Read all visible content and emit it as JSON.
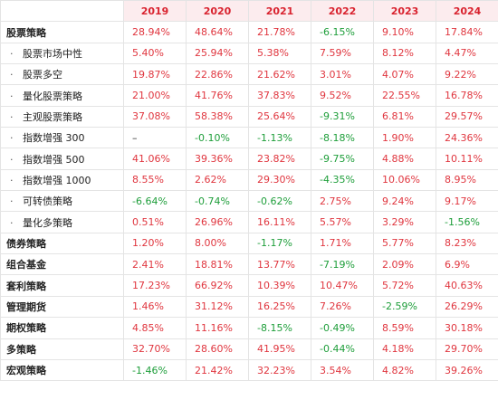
{
  "colors": {
    "positive": "#e0363f",
    "negative": "#1e9e3a",
    "header_text": "#d9232f",
    "header_bg": "#fcecee"
  },
  "bullet_glyph": "·",
  "years": [
    "2019",
    "2020",
    "2021",
    "2022",
    "2023",
    "2024"
  ],
  "rows": [
    {
      "label": "股票策略",
      "type": "main",
      "values": [
        "28.94%",
        "48.64%",
        "21.78%",
        "-6.15%",
        "9.10%",
        "17.84%"
      ]
    },
    {
      "label": "股票市场中性",
      "type": "sub",
      "values": [
        "5.40%",
        "25.94%",
        "5.38%",
        "7.59%",
        "8.12%",
        "4.47%"
      ]
    },
    {
      "label": "股票多空",
      "type": "sub",
      "values": [
        "19.87%",
        "22.86%",
        "21.62%",
        "3.01%",
        "4.07%",
        "9.22%"
      ]
    },
    {
      "label": "量化股票策略",
      "type": "sub",
      "values": [
        "21.00%",
        "41.76%",
        "37.83%",
        "9.52%",
        "22.55%",
        "16.78%"
      ]
    },
    {
      "label": "主观股票策略",
      "type": "sub",
      "values": [
        "37.08%",
        "58.38%",
        "25.64%",
        "-9.31%",
        "6.81%",
        "29.57%"
      ]
    },
    {
      "label": "指数增强 300",
      "type": "sub",
      "values": [
        "–",
        "-0.10%",
        "-1.13%",
        "-8.18%",
        "1.90%",
        "24.36%"
      ]
    },
    {
      "label": "指数增强 500",
      "type": "sub",
      "values": [
        "41.06%",
        "39.36%",
        "23.82%",
        "-9.75%",
        "4.88%",
        "10.11%"
      ]
    },
    {
      "label": "指数增强 1000",
      "type": "sub",
      "values": [
        "8.55%",
        "2.62%",
        "29.30%",
        "-4.35%",
        "10.06%",
        "8.95%"
      ]
    },
    {
      "label": "可转债策略",
      "type": "sub",
      "values": [
        "-6.64%",
        "-0.74%",
        "-0.62%",
        "2.75%",
        "9.24%",
        "9.17%"
      ]
    },
    {
      "label": "量化多策略",
      "type": "sub",
      "values": [
        "0.51%",
        "26.96%",
        "16.11%",
        "5.57%",
        "3.29%",
        "-1.56%"
      ]
    },
    {
      "label": "债券策略",
      "type": "main",
      "values": [
        "1.20%",
        "8.00%",
        "-1.17%",
        "1.71%",
        "5.77%",
        "8.23%"
      ]
    },
    {
      "label": "组合基金",
      "type": "main",
      "values": [
        "2.41%",
        "18.81%",
        "13.77%",
        "-7.19%",
        "2.09%",
        "6.9%"
      ]
    },
    {
      "label": "套利策略",
      "type": "main",
      "values": [
        "17.23%",
        "66.92%",
        "10.39%",
        "10.47%",
        "5.72%",
        "40.63%"
      ]
    },
    {
      "label": "管理期货",
      "type": "main",
      "values": [
        "1.46%",
        "31.12%",
        "16.25%",
        "7.26%",
        "-2.59%",
        "26.29%"
      ]
    },
    {
      "label": "期权策略",
      "type": "main",
      "values": [
        "4.85%",
        "11.16%",
        "-8.15%",
        "-0.49%",
        "8.59%",
        "30.18%"
      ]
    },
    {
      "label": "多策略",
      "type": "main",
      "values": [
        "32.70%",
        "28.60%",
        "41.95%",
        "-0.44%",
        "4.18%",
        "29.70%"
      ]
    },
    {
      "label": "宏观策略",
      "type": "main",
      "values": [
        "-1.46%",
        "21.42%",
        "32.23%",
        "3.54%",
        "4.82%",
        "39.26%"
      ]
    }
  ]
}
